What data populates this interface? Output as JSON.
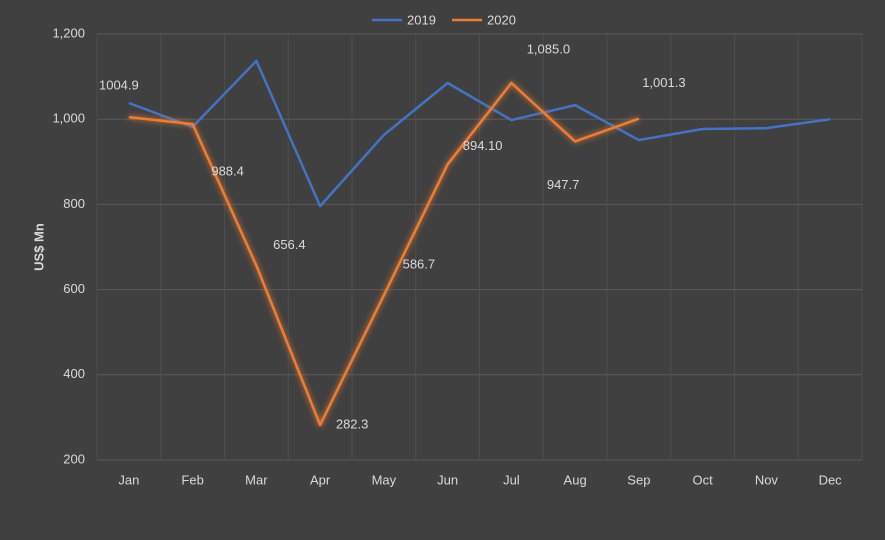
{
  "chart_data": {
    "type": "line",
    "y_label": "US$ Mn",
    "categories": [
      "Jan",
      "Feb",
      "Mar",
      "Apr",
      "May",
      "Jun",
      "Jul",
      "Aug",
      "Sep",
      "Oct",
      "Nov",
      "Dec"
    ],
    "series": [
      {
        "name": "2019",
        "color": "#4472c4",
        "values": [
          1038,
          982,
          1137,
          796,
          963,
          1085,
          998,
          1033,
          951,
          977,
          979,
          1000
        ]
      },
      {
        "name": "2020",
        "color": "#ed7d31",
        "values": [
          1004.9,
          988.4,
          656.4,
          282.3,
          586.7,
          894.1,
          1085.0,
          947.7,
          1001.3,
          null,
          null,
          null
        ],
        "value_labels": [
          "1004.9",
          "988.4",
          "656.4",
          "282.3",
          "586.7",
          "894.10",
          "1,085.0",
          "947.7",
          "1,001.3",
          null,
          null,
          null
        ]
      }
    ],
    "ylim": [
      200,
      1200
    ],
    "yticks": [
      200,
      400,
      600,
      800,
      {
        "value": 1000,
        "label": "1,000"
      },
      {
        "value": 1200,
        "label": "1,200"
      }
    ],
    "grid": true,
    "legend": "top"
  }
}
